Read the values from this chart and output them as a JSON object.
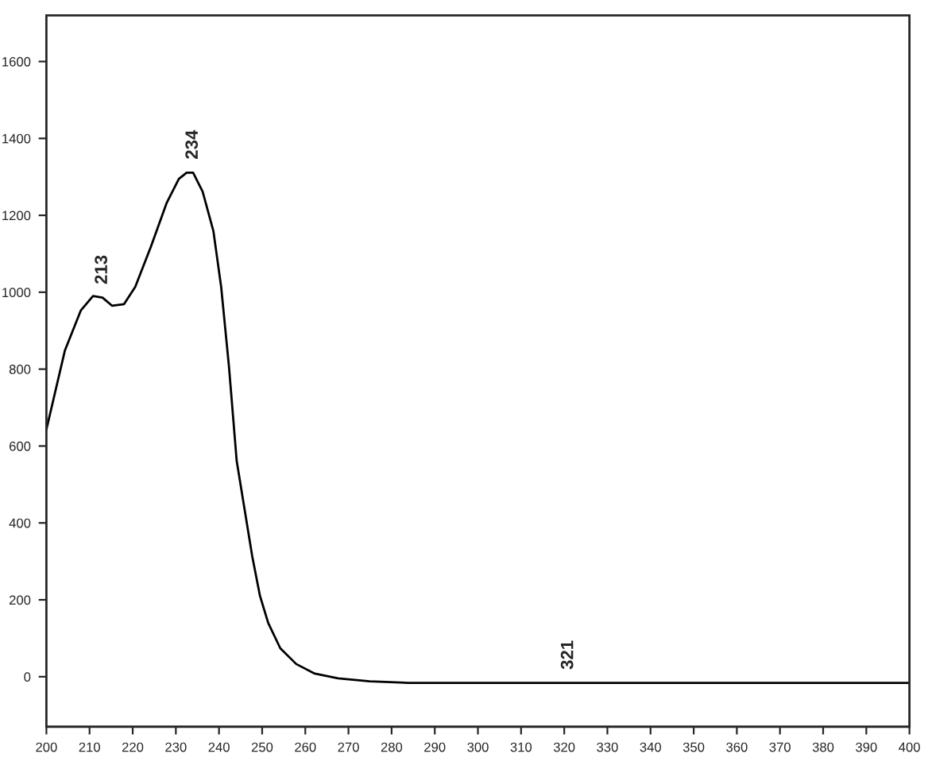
{
  "chart_data": {
    "type": "line",
    "color": "#000000",
    "x": [
      200,
      204.3,
      208,
      210.8,
      213,
      215.2,
      218,
      220.6,
      224.2,
      227.9,
      230.7,
      232.5,
      234,
      236.2,
      238.7,
      240.5,
      242.3,
      244.1,
      245.9,
      247.7,
      249.5,
      251.4,
      254.2,
      257.9,
      262.2,
      267.6,
      274.9,
      283.9,
      400
    ],
    "values": [
      643,
      849,
      953,
      990,
      986,
      965,
      969,
      1014,
      1118,
      1233,
      1295,
      1311,
      1311,
      1262,
      1159,
      1014,
      808,
      561,
      437,
      313,
      210,
      140,
      74,
      33,
      8,
      -4,
      -12,
      -16,
      -16
    ],
    "xlim": [
      200,
      400
    ],
    "xticks": [
      200,
      210,
      220,
      230,
      240,
      250,
      260,
      270,
      280,
      290,
      300,
      310,
      320,
      330,
      340,
      350,
      360,
      370,
      380,
      390,
      400
    ],
    "ylim": [
      -130,
      1720
    ],
    "yticks": [
      0,
      200,
      400,
      600,
      800,
      1000,
      1200,
      1400,
      1600
    ],
    "grid": false,
    "marker": "none",
    "line_style": "solid",
    "annotations": [
      {
        "text": "213",
        "x": 213,
        "y": 986
      },
      {
        "text": "234",
        "x": 234,
        "y": 1311
      },
      {
        "text": "321",
        "x": 321,
        "y": -16
      }
    ]
  }
}
